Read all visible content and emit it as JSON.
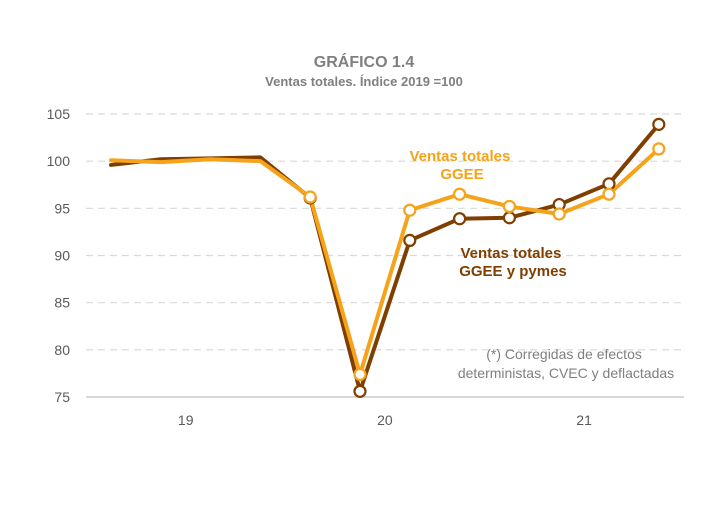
{
  "chart_data": {
    "type": "line",
    "title": "GRÁFICO 1.4",
    "subtitle": "Ventas totales. Índice 2019 =100",
    "x_tick_labels": [
      "19",
      "20",
      "21"
    ],
    "ylim": [
      75,
      105
    ],
    "y_ticks": [
      75,
      80,
      85,
      90,
      95,
      100,
      105
    ],
    "grid": true,
    "x": [
      "19",
      "19",
      "19",
      "19",
      "20",
      "20",
      "20",
      "20",
      "21",
      "21",
      "21",
      "21"
    ],
    "series": [
      {
        "name": "Ventas totales GGEE y pymes",
        "label_lines": [
          "Ventas totales",
          "GGEE  y pymes"
        ],
        "color": "#7f3f00",
        "values": [
          99.6,
          100.2,
          100.3,
          100.4,
          96.1,
          75.6,
          91.6,
          93.9,
          94.0,
          95.4,
          97.6,
          103.9
        ],
        "markers": [
          false,
          false,
          false,
          false,
          true,
          true,
          true,
          true,
          true,
          true,
          true,
          true
        ]
      },
      {
        "name": "Ventas totales GGEE",
        "label_lines": [
          "Ventas totales",
          "GGEE"
        ],
        "color": "#f5a31a",
        "values": [
          100.1,
          99.9,
          100.2,
          100.0,
          96.2,
          77.4,
          94.8,
          96.5,
          95.2,
          94.4,
          96.5,
          101.3
        ],
        "markers": [
          false,
          false,
          false,
          false,
          true,
          true,
          true,
          true,
          true,
          true,
          true,
          true
        ]
      }
    ],
    "note_lines": [
      "(*) Corregidas de efectos",
      "deterministas,  CVEC y deflactadas"
    ]
  }
}
